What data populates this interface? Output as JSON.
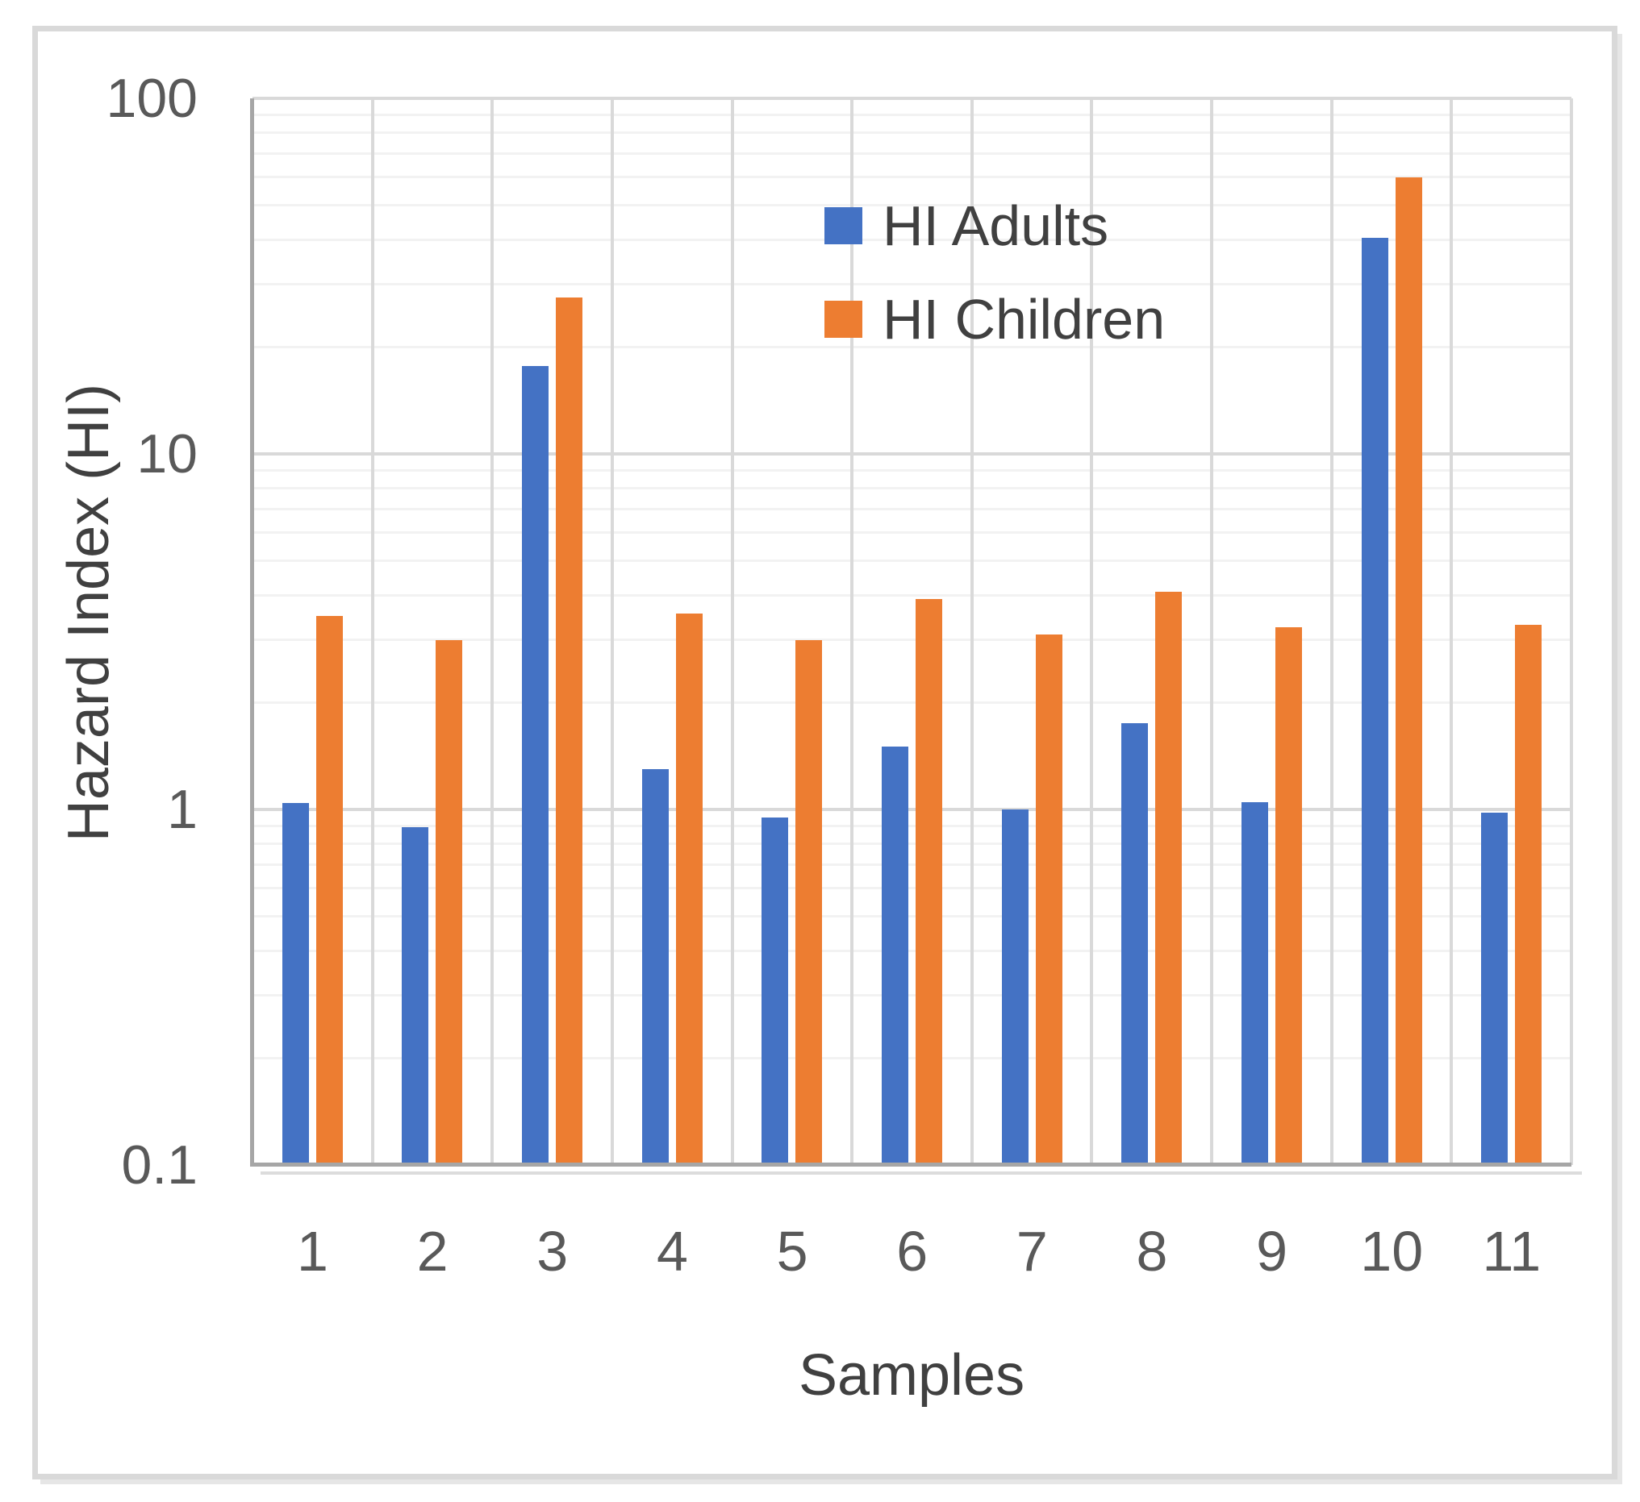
{
  "figure": {
    "background": "#ffffff",
    "frame_color": "#d9d9d9",
    "axis_line_color": "#a6a6a6",
    "major_grid_color": "#d9d9d9",
    "minor_grid_color": "#f2f2f2",
    "tick_label_color": "#595959",
    "title_color": "#404040"
  },
  "legend": {
    "items": [
      {
        "label": "HI Adults",
        "color": "#4472C4"
      },
      {
        "label": "HI Children",
        "color": "#ED7D31"
      }
    ]
  },
  "chart_data": {
    "type": "bar",
    "categories": [
      "1",
      "2",
      "3",
      "4",
      "5",
      "6",
      "7",
      "8",
      "9",
      "10",
      "11"
    ],
    "series": [
      {
        "name": "HI Adults",
        "color": "#4472C4",
        "values": [
          1.04,
          0.89,
          17.7,
          1.3,
          0.95,
          1.5,
          1.0,
          1.75,
          1.05,
          40.5,
          0.98
        ]
      },
      {
        "name": "HI Children",
        "color": "#ED7D31",
        "values": [
          3.5,
          3.0,
          27.5,
          3.55,
          3.0,
          3.9,
          3.1,
          4.1,
          3.25,
          60,
          3.3
        ]
      }
    ],
    "title": "",
    "xlabel": "Samples",
    "ylabel": "Hazard Index (HI)",
    "y_scale": "log",
    "ylim": [
      0.1,
      100
    ],
    "y_tick_labels": [
      "100",
      "10",
      "1",
      "0.1"
    ],
    "grid": true,
    "legend_position": "inside-top-center"
  }
}
